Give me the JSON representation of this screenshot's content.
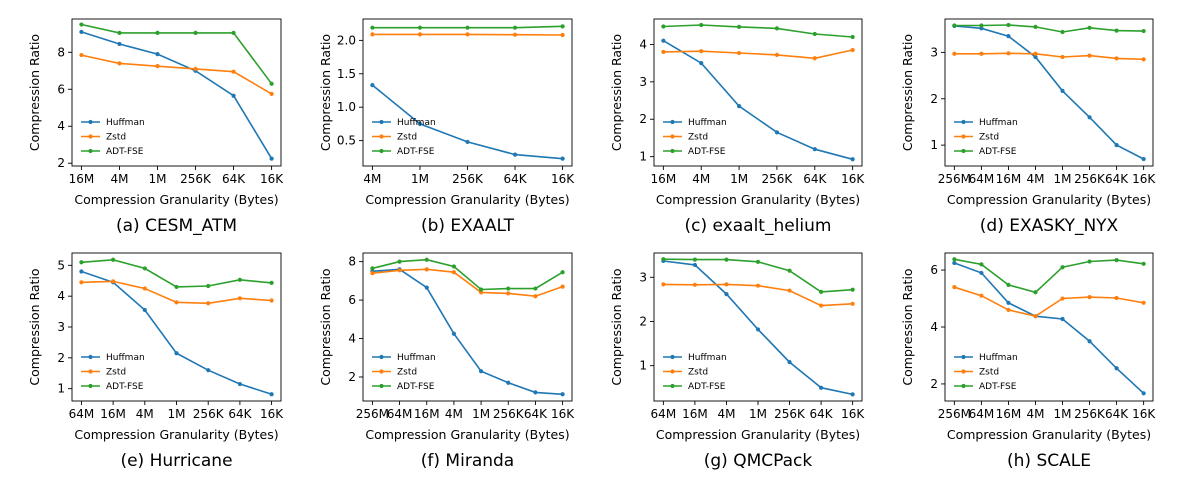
{
  "figure": {
    "colors": {
      "Huffman": "#1f77b4",
      "Zstd": "#ff7f0e",
      "ADT-FSE": "#2ca02c"
    }
  },
  "chart_data": [
    {
      "type": "line",
      "caption": "(a) CESM_ATM",
      "xlabel": "Compression Granularity (Bytes)",
      "ylabel": "Compression Ratio",
      "categories": [
        "16M",
        "4M",
        "1M",
        "256K",
        "64K",
        "16K"
      ],
      "ylim": [
        1.85,
        9.8
      ],
      "yticks": [
        2,
        4,
        6,
        8
      ],
      "legend": "lower-left",
      "series": [
        {
          "name": "Huffman",
          "values": [
            9.1,
            8.45,
            7.9,
            7.0,
            5.65,
            2.25
          ]
        },
        {
          "name": "Zstd",
          "values": [
            7.85,
            7.4,
            7.25,
            7.1,
            6.95,
            5.75
          ]
        },
        {
          "name": "ADT-FSE",
          "values": [
            9.5,
            9.05,
            9.05,
            9.05,
            9.05,
            6.3
          ]
        }
      ]
    },
    {
      "type": "line",
      "caption": "(b) EXAALT",
      "xlabel": "Compression Granularity (Bytes)",
      "ylabel": "Compression Ratio",
      "categories": [
        "4M",
        "1M",
        "256K",
        "64K",
        "16K"
      ],
      "ylim": [
        0.12,
        2.32
      ],
      "yticks": [
        0.5,
        1.0,
        1.5,
        2.0
      ],
      "legend": "lower-left",
      "series": [
        {
          "name": "Huffman",
          "values": [
            1.33,
            0.75,
            0.48,
            0.29,
            0.23
          ]
        },
        {
          "name": "Zstd",
          "values": [
            2.09,
            2.09,
            2.09,
            2.085,
            2.08
          ]
        },
        {
          "name": "ADT-FSE",
          "values": [
            2.19,
            2.19,
            2.19,
            2.19,
            2.21
          ]
        }
      ]
    },
    {
      "type": "line",
      "caption": "(c) exaalt_helium",
      "xlabel": "Compression Granularity (Bytes)",
      "ylabel": "Compression Ratio",
      "categories": [
        "16M",
        "4M",
        "1M",
        "256K",
        "64K",
        "16K"
      ],
      "ylim": [
        0.75,
        4.68
      ],
      "yticks": [
        1,
        2,
        3,
        4
      ],
      "legend": "lower-left",
      "series": [
        {
          "name": "Huffman",
          "values": [
            4.1,
            3.5,
            2.35,
            1.65,
            1.2,
            0.93
          ]
        },
        {
          "name": "Zstd",
          "values": [
            3.8,
            3.82,
            3.77,
            3.72,
            3.63,
            3.85
          ]
        },
        {
          "name": "ADT-FSE",
          "values": [
            4.48,
            4.52,
            4.47,
            4.43,
            4.28,
            4.2
          ]
        }
      ]
    },
    {
      "type": "line",
      "caption": "(d) EXASKY_NYX",
      "xlabel": "Compression Granularity (Bytes)",
      "ylabel": "Compression Ratio",
      "categories": [
        "256M",
        "64M",
        "16M",
        "4M",
        "1M",
        "256K",
        "64K",
        "16K"
      ],
      "ylim": [
        0.55,
        3.72
      ],
      "yticks": [
        1,
        2,
        3
      ],
      "legend": "lower-left",
      "series": [
        {
          "name": "Huffman",
          "values": [
            3.57,
            3.52,
            3.35,
            2.9,
            2.17,
            1.6,
            1.0,
            0.7
          ]
        },
        {
          "name": "Zstd",
          "values": [
            2.97,
            2.97,
            2.98,
            2.97,
            2.9,
            2.93,
            2.87,
            2.85
          ]
        },
        {
          "name": "ADT-FSE",
          "values": [
            3.58,
            3.58,
            3.59,
            3.55,
            3.44,
            3.53,
            3.47,
            3.46
          ]
        }
      ]
    },
    {
      "type": "line",
      "caption": "(e) Hurricane",
      "xlabel": "Compression Granularity (Bytes)",
      "ylabel": "Compression Ratio",
      "categories": [
        "64M",
        "16M",
        "4M",
        "1M",
        "256K",
        "64K",
        "16K"
      ],
      "ylim": [
        0.6,
        5.4
      ],
      "yticks": [
        1,
        2,
        3,
        4,
        5
      ],
      "legend": "lower-left",
      "series": [
        {
          "name": "Huffman",
          "values": [
            4.8,
            4.45,
            3.55,
            2.15,
            1.6,
            1.15,
            0.82
          ]
        },
        {
          "name": "Zstd",
          "values": [
            4.45,
            4.48,
            4.25,
            3.8,
            3.77,
            3.93,
            3.86
          ]
        },
        {
          "name": "ADT-FSE",
          "values": [
            5.1,
            5.18,
            4.9,
            4.3,
            4.33,
            4.53,
            4.43
          ]
        }
      ]
    },
    {
      "type": "line",
      "caption": "(f) Miranda",
      "xlabel": "Compression Granularity (Bytes)",
      "ylabel": "Compression Ratio",
      "categories": [
        "256M",
        "64M",
        "16M",
        "4M",
        "1M",
        "256K",
        "64K",
        "16K"
      ],
      "ylim": [
        0.75,
        8.45
      ],
      "yticks": [
        2,
        4,
        6,
        8
      ],
      "legend": "lower-left",
      "series": [
        {
          "name": "Huffman",
          "values": [
            7.5,
            7.6,
            6.65,
            4.25,
            2.3,
            1.7,
            1.2,
            1.1
          ]
        },
        {
          "name": "Zstd",
          "values": [
            7.4,
            7.55,
            7.6,
            7.45,
            6.4,
            6.35,
            6.2,
            6.7
          ]
        },
        {
          "name": "ADT-FSE",
          "values": [
            7.65,
            8.0,
            8.1,
            7.75,
            6.55,
            6.6,
            6.6,
            7.45
          ]
        }
      ]
    },
    {
      "type": "line",
      "caption": "(g) QMCPack",
      "xlabel": "Compression Granularity (Bytes)",
      "ylabel": "Compression Ratio",
      "categories": [
        "64M",
        "16M",
        "4M",
        "1M",
        "256K",
        "64K",
        "16K"
      ],
      "ylim": [
        0.2,
        3.55
      ],
      "yticks": [
        1,
        2,
        3
      ],
      "legend": "lower-left",
      "series": [
        {
          "name": "Huffman",
          "values": [
            3.37,
            3.28,
            2.62,
            1.82,
            1.08,
            0.5,
            0.35
          ]
        },
        {
          "name": "Zstd",
          "values": [
            2.84,
            2.83,
            2.84,
            2.81,
            2.7,
            2.36,
            2.4
          ]
        },
        {
          "name": "ADT-FSE",
          "values": [
            3.41,
            3.4,
            3.4,
            3.35,
            3.15,
            2.67,
            2.72
          ]
        }
      ]
    },
    {
      "type": "line",
      "caption": "(h) SCALE",
      "xlabel": "Compression Granularity (Bytes)",
      "ylabel": "Compression Ratio",
      "categories": [
        "256M",
        "64M",
        "16M",
        "4M",
        "1M",
        "256K",
        "64K",
        "16K"
      ],
      "ylim": [
        1.4,
        6.6
      ],
      "yticks": [
        2,
        4,
        6
      ],
      "legend": "lower-left",
      "series": [
        {
          "name": "Huffman",
          "values": [
            6.25,
            5.9,
            4.85,
            4.38,
            4.28,
            3.5,
            2.55,
            1.67
          ]
        },
        {
          "name": "Zstd",
          "values": [
            5.4,
            5.1,
            4.6,
            4.38,
            5.0,
            5.05,
            5.02,
            4.85
          ]
        },
        {
          "name": "ADT-FSE",
          "values": [
            6.38,
            6.2,
            5.48,
            5.22,
            6.1,
            6.3,
            6.35,
            6.22
          ]
        }
      ]
    }
  ]
}
